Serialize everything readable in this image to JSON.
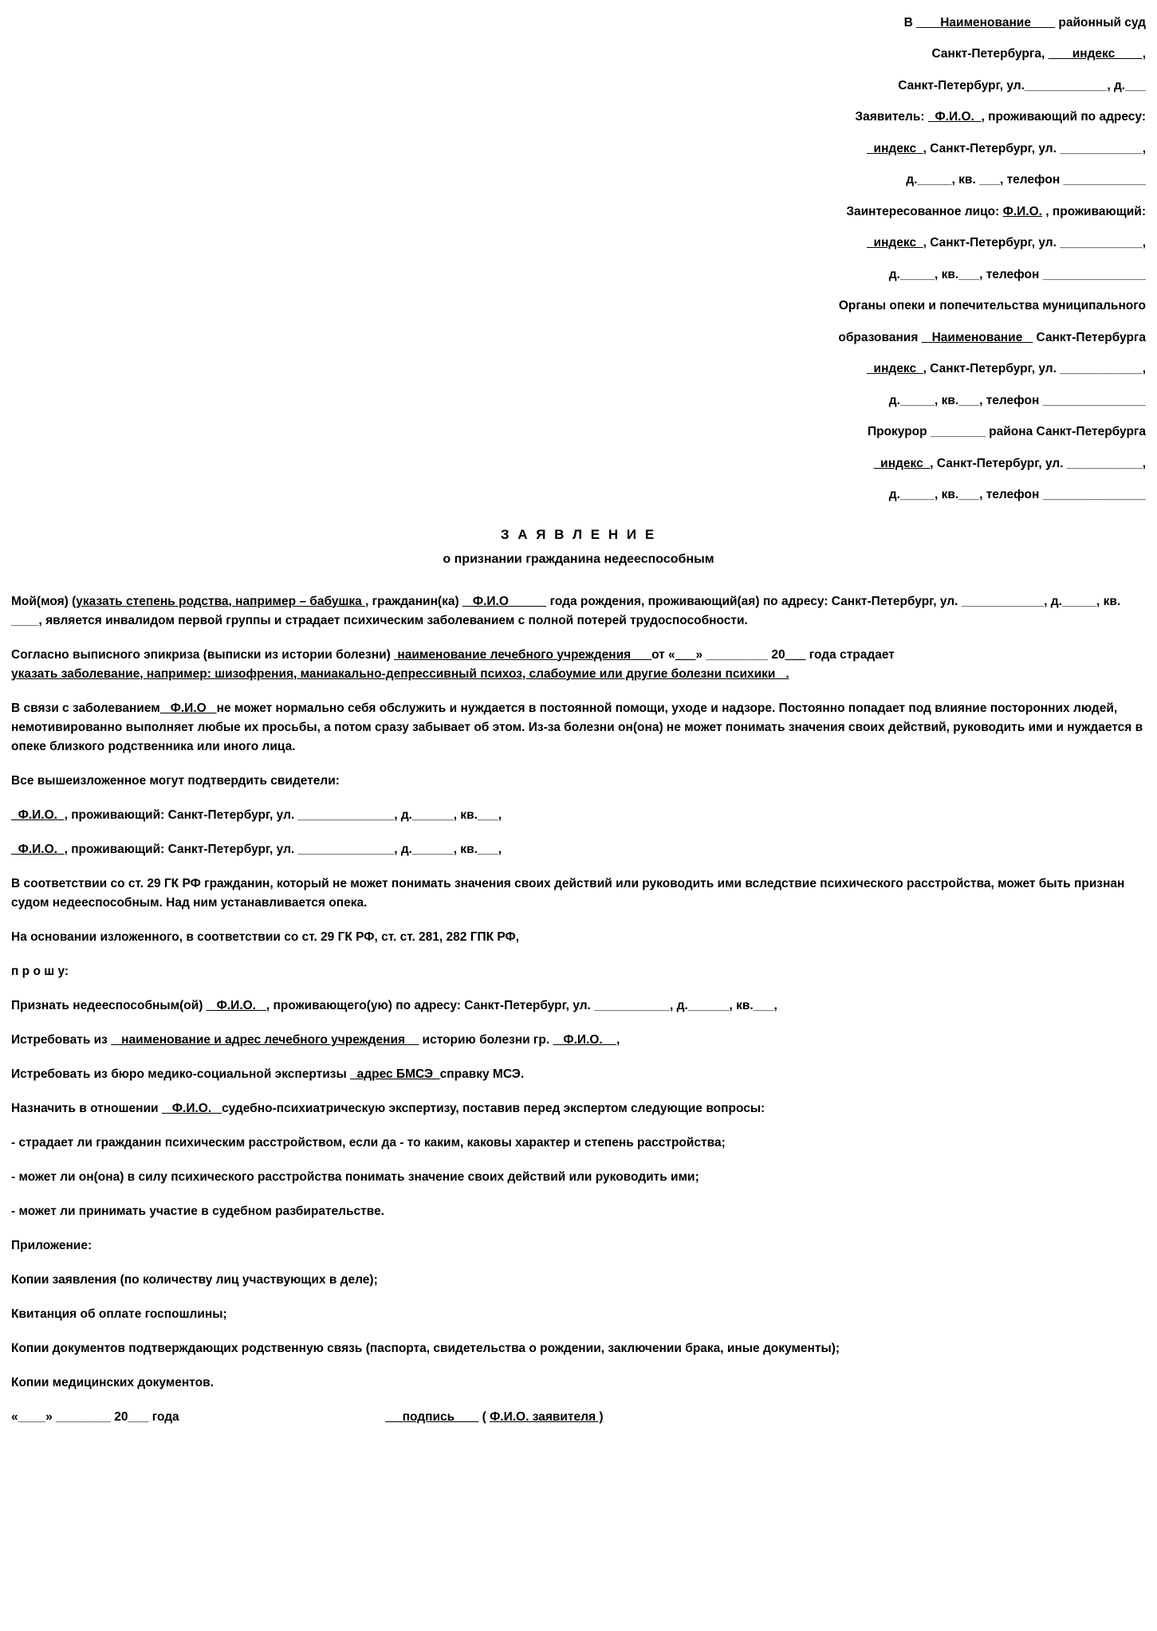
{
  "labels": {
    "v": "В ",
    "court_suffix": " районный суд",
    "spb_city": "Санкт-Петербурга, ",
    "spb_addr_prefix": ", Санкт-Петербург, ул. ",
    "spb_addr_prefix2": " Санкт-Петербург, ул.",
    "house": ", д.",
    "apt_full": ", кв. ",
    "apt_short": ", кв.",
    "phone": ", телефон ",
    "applicant": "Заявитель: ",
    "living_at": ", проживающий по адресу:",
    "living": ", проживающий:",
    "interested": "Заинтересованное лицо: ",
    "guardianship": "Органы опеки и попечительства муниципального",
    "guardianship2": "образования ",
    "spb_suffix": " Санкт-Петербурга",
    "prosecutor": "Прокурор ",
    "prosecutor_suffix": " района Санкт-Петербурга"
  },
  "placeholders": {
    "name": "       Наименование       ",
    "name2": "   Наименование   ",
    "index": "       индекс        ",
    "index_short": "  индекс  ",
    "fio": "  Ф.И.О.  ",
    "fio2": "   Ф.И.О   ",
    "fio3": "Ф.И.О.",
    "blank_long": "____________",
    "blank_lmed": "___________",
    "blank_med": "________",
    "blank_short": "_____",
    "blank_tiny": "___",
    "blank_phone": "_______________"
  },
  "title": {
    "main": "З А Я В Л Е Н И Е",
    "sub": "о признании гражданина недееспособным"
  },
  "body": {
    "p1a": "Мой(моя)  ",
    "p1_rel": "(указать степень родства, например – бабушка ,",
    "p1b": " гражданин(ка) ",
    "p1_fio": "   Ф.И.О           ",
    "p1c": " года рождения, проживающий(ая) по адресу: Санкт-Петербург, ул. ____________, д._____, кв. ____, является инвалидом первой группы и страдает психическим заболеванием с полной потерей трудоспособности.",
    "p2a": "Согласно выписного эпикриза (выписки из истории болезни)  ",
    "p2_hosp": " наименование лечебного учреждения      ",
    "p2b": "от «",
    "p2c": "» _________ 20",
    "p2d": " года страдает  ",
    "p2_diag": "указать заболевание, например: шизофрения, маниакально-депрессивный психоз, слабоумие или другие болезни психики   .",
    "p3a": "В связи с заболеванием",
    "p3_fio": "   Ф.И.О   ",
    "p3b": "не может нормально себя обслужить и нуждается в постоянной помощи, уходе и надзоре. Постоянно попадает под влияние посторонних людей, немотивированно выполняет любые их просьбы, а потом сразу забывает об этом. Из-за болезни он(она) не может понимать значения своих действий, руководить ими и нуждается в опеке близкого родственника или иного лица.",
    "p4": "Все вышеизложенное могут подтвердить свидетели:",
    "witness_a": ", проживающий: Санкт-Петербург, ул. ______________, д.______, кв.___,",
    "p5": "В соответствии со ст. 29 ГК РФ гражданин, который не может понимать значения своих действий или руководить ими вследствие психического расстройства, может быть признан судом недееспособным. Над ним устанавливается опека.",
    "p6": "На основании изложенного, в соответствии со ст. 29 ГК РФ, ст. ст. 281, 282 ГПК РФ,",
    "ask": "п р о ш у:",
    "req1a": "Признать недееспособным(ой) ",
    "req1_fio": "   Ф.И.О.   ",
    "req1b": ", проживающего(ую) по адресу: Санкт-Петербург, ул. ___________, д.______, кв.___,",
    "req2a": "Истребовать из ",
    "req2_hosp": "   наименование и адрес лечебного учреждения    ",
    "req2b": " историю болезни гр. ",
    "req2_fio": "   Ф.И.О.    ",
    "req2c": ",",
    "req3a": "Истребовать из бюро медико-социальной экспертизы ",
    "req3_addr": "  адрес БМСЭ  ",
    "req3b": "справку МСЭ.",
    "req4a": "Назначить в отношении ",
    "req4_fio": "   Ф.И.О.   ",
    "req4b": "судебно-психиатрическую экспертизу, поставив перед экспертом следующие вопросы:",
    "q1": "- страдает ли гражданин психическим расстройством, если да - то каким, каковы характер и степень расстройства;",
    "q2": "- может ли он(она) в силу психического расстройства понимать значение своих действий или руководить ими;",
    "q3": "- может ли принимать участие в судебном разбирательстве.",
    "attach": "Приложение:",
    "att1": "Копии заявления (по количеству лиц участвующих в деле);",
    "att2": "Квитанция об оплате госпошлины;",
    "att3": "Копии документов подтверждающих родственную связь (паспорта, свидетельства о рождении, заключении брака, иные документы);",
    "att4": "Копии медицинских документов.",
    "sign_a": "«____» ________ 20___ года",
    "sign_b": "     подпись       ",
    "sign_c": "  ( ",
    "sign_d": "Ф.И.О. заявителя )"
  }
}
